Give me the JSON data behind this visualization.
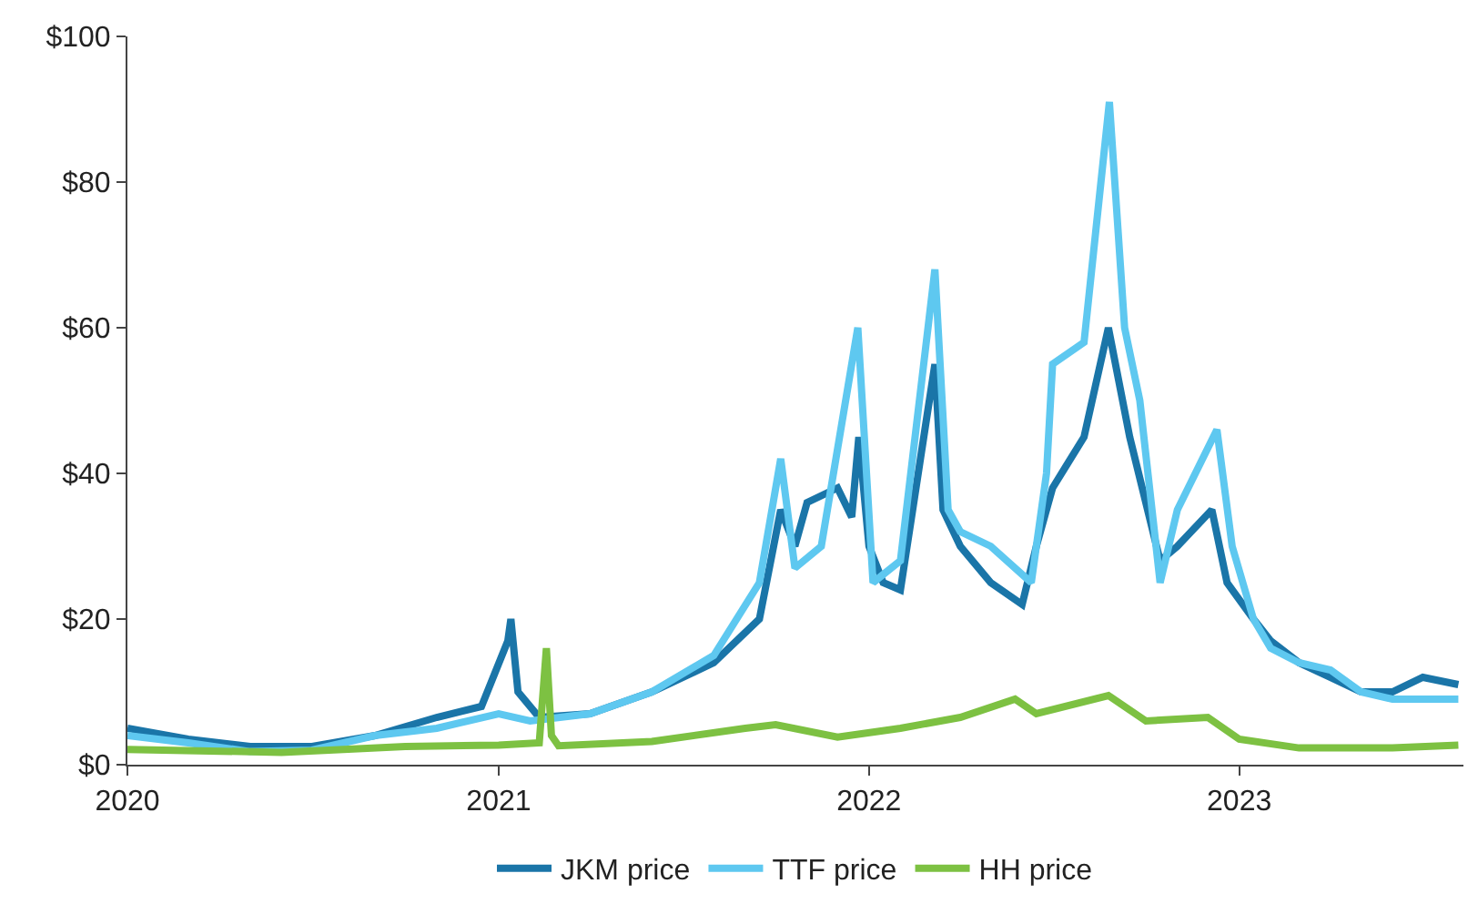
{
  "chart_data": {
    "type": "line",
    "x": [
      "2020-01-01",
      "2020-03-01",
      "2020-05-01",
      "2020-07-01",
      "2020-09-01",
      "2020-11-01",
      "2020-12-15",
      "2021-01-10",
      "2021-01-13",
      "2021-01-20",
      "2021-02-10",
      "2021-04-01",
      "2021-06-01",
      "2021-08-01",
      "2021-09-15",
      "2021-10-06",
      "2021-10-20",
      "2021-11-01",
      "2021-12-01",
      "2021-12-15",
      "2021-12-22",
      "2022-01-01",
      "2022-01-15",
      "2022-02-01",
      "2022-03-07",
      "2022-03-15",
      "2022-04-01",
      "2022-05-01",
      "2022-06-01",
      "2022-06-15",
      "2022-07-01",
      "2022-08-01",
      "2022-08-25",
      "2022-09-15",
      "2022-10-15",
      "2022-11-01",
      "2022-12-05",
      "2022-12-20",
      "2023-01-15",
      "2023-02-01",
      "2023-03-01",
      "2023-04-01",
      "2023-05-01",
      "2023-06-01",
      "2023-07-01",
      "2023-08-05"
    ],
    "series": [
      {
        "name": "JKM price",
        "color": "#1a75a8",
        "values": [
          5,
          3.5,
          2.5,
          2.5,
          4,
          6.5,
          8,
          17,
          20,
          10,
          6.5,
          7,
          10,
          14,
          20,
          35,
          30,
          36,
          38,
          34,
          45,
          30,
          25,
          24,
          55,
          35,
          30,
          25,
          22,
          30,
          38,
          45,
          60,
          45,
          28,
          30,
          35,
          25,
          20,
          17,
          14,
          12,
          10,
          10,
          12,
          11
        ]
      },
      {
        "name": "TTF price",
        "color": "#5ec8f0",
        "x": [
          "2020-01-01",
          "2020-03-01",
          "2020-05-01",
          "2020-07-01",
          "2020-09-01",
          "2020-11-01",
          "2021-01-01",
          "2021-02-01",
          "2021-04-01",
          "2021-06-01",
          "2021-08-01",
          "2021-09-15",
          "2021-10-06",
          "2021-10-20",
          "2021-11-15",
          "2021-12-21",
          "2022-01-05",
          "2022-02-01",
          "2022-03-07",
          "2022-03-20",
          "2022-04-01",
          "2022-05-01",
          "2022-06-10",
          "2022-06-25",
          "2022-07-01",
          "2022-08-01",
          "2022-08-26",
          "2022-09-10",
          "2022-09-25",
          "2022-10-15",
          "2022-11-01",
          "2022-12-10",
          "2022-12-25",
          "2023-01-15",
          "2023-02-01",
          "2023-03-01",
          "2023-04-01",
          "2023-05-01",
          "2023-06-01",
          "2023-07-01",
          "2023-08-05"
        ],
        "values": [
          4,
          3,
          1.8,
          2,
          4,
          5,
          7,
          6,
          7,
          10,
          15,
          25,
          42,
          27,
          30,
          60,
          25,
          28,
          68,
          35,
          32,
          30,
          25,
          40,
          55,
          58,
          91,
          60,
          50,
          25,
          35,
          46,
          30,
          20,
          16,
          14,
          13,
          10,
          9,
          9,
          9
        ]
      },
      {
        "name": "HH price",
        "color": "#7dc142",
        "x": [
          "2020-01-01",
          "2020-06-01",
          "2020-10-01",
          "2021-01-01",
          "2021-02-10",
          "2021-02-17",
          "2021-02-22",
          "2021-03-01",
          "2021-06-01",
          "2021-09-01",
          "2021-10-01",
          "2021-12-01",
          "2022-02-01",
          "2022-04-01",
          "2022-05-25",
          "2022-06-15",
          "2022-08-25",
          "2022-10-01",
          "2022-12-01",
          "2023-01-01",
          "2023-03-01",
          "2023-06-01",
          "2023-08-05"
        ],
        "values": [
          2.1,
          1.7,
          2.5,
          2.7,
          3,
          16,
          4,
          2.6,
          3.2,
          5,
          5.5,
          3.8,
          5,
          6.5,
          9,
          7,
          9.5,
          6,
          6.5,
          3.5,
          2.3,
          2.3,
          2.7
        ]
      }
    ],
    "xlim": [
      "2020-01-01",
      "2023-08-10"
    ],
    "xticks": [
      {
        "value": "2020-01-01",
        "label": "2020"
      },
      {
        "value": "2021-01-01",
        "label": "2021"
      },
      {
        "value": "2022-01-01",
        "label": "2022"
      },
      {
        "value": "2023-01-01",
        "label": "2023"
      }
    ],
    "ylim": [
      0,
      100
    ],
    "yticks": [
      {
        "value": 0,
        "label": "$0"
      },
      {
        "value": 20,
        "label": "$20"
      },
      {
        "value": 40,
        "label": "$40"
      },
      {
        "value": 60,
        "label": "$60"
      },
      {
        "value": 80,
        "label": "$80"
      },
      {
        "value": 100,
        "label": "$100"
      }
    ],
    "legend": "bottom",
    "line_style": "solid",
    "marker": "none"
  }
}
